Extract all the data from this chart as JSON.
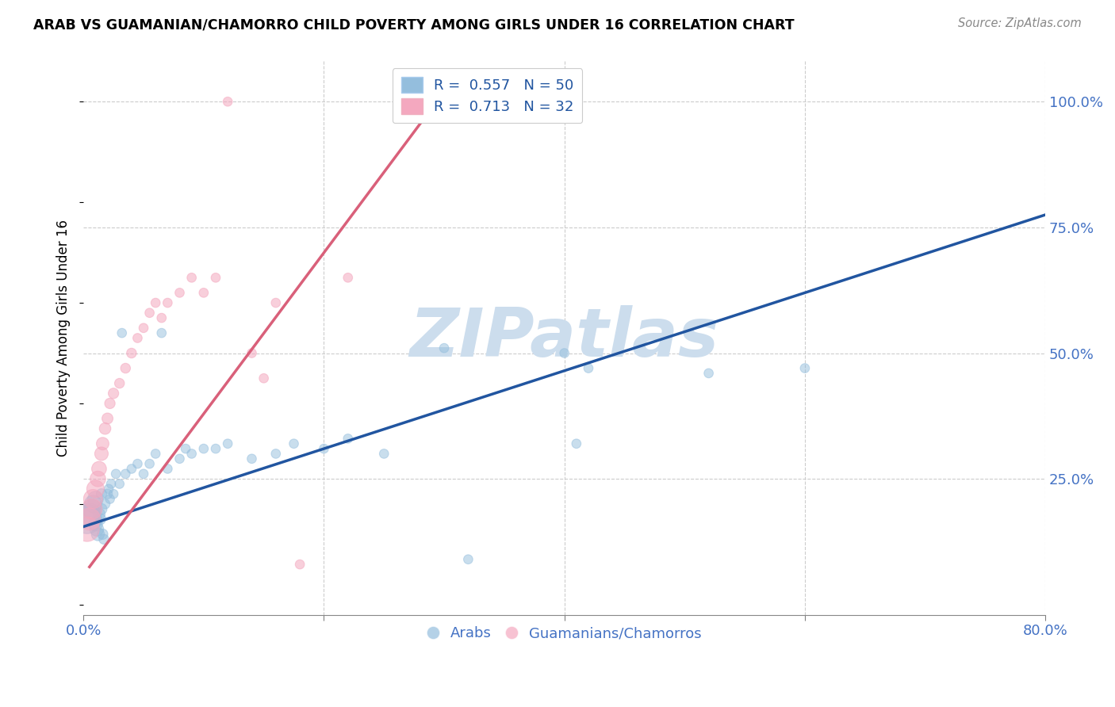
{
  "title": "ARAB VS GUAMANIAN/CHAMORRO CHILD POVERTY AMONG GIRLS UNDER 16 CORRELATION CHART",
  "source": "Source: ZipAtlas.com",
  "tick_color": "#4472c4",
  "ylabel": "Child Poverty Among Girls Under 16",
  "xlim": [
    0.0,
    0.8
  ],
  "ylim": [
    -0.02,
    1.08
  ],
  "xtick_values": [
    0.0,
    0.2,
    0.4,
    0.6,
    0.8
  ],
  "xtick_labels": [
    "0.0%",
    "",
    "",
    "",
    "80.0%"
  ],
  "ytick_labels": [
    "100.0%",
    "75.0%",
    "50.0%",
    "25.0%"
  ],
  "ytick_values": [
    1.0,
    0.75,
    0.5,
    0.25
  ],
  "arab_R": 0.557,
  "arab_N": 50,
  "guam_R": 0.713,
  "guam_N": 32,
  "arab_color": "#94bedd",
  "guam_color": "#f4a8bf",
  "arab_line_color": "#2155a0",
  "guam_line_color": "#d9607a",
  "watermark": "ZIPatlas",
  "watermark_color": "#ccdded",
  "arab_line_x0": 0.0,
  "arab_line_y0": 0.155,
  "arab_line_x1": 0.8,
  "arab_line_y1": 0.775,
  "guam_line_x0": 0.005,
  "guam_line_y0": 0.075,
  "guam_line_x1": 0.3,
  "guam_line_y1": 1.02,
  "arab_scatter_x": [
    0.003,
    0.005,
    0.007,
    0.008,
    0.01,
    0.01,
    0.011,
    0.012,
    0.013,
    0.014,
    0.015,
    0.015,
    0.016,
    0.017,
    0.018,
    0.02,
    0.021,
    0.022,
    0.023,
    0.025,
    0.027,
    0.03,
    0.032,
    0.035,
    0.04,
    0.045,
    0.05,
    0.055,
    0.06,
    0.065,
    0.07,
    0.08,
    0.085,
    0.09,
    0.1,
    0.11,
    0.12,
    0.14,
    0.16,
    0.175,
    0.2,
    0.22,
    0.25,
    0.3,
    0.4,
    0.41,
    0.42,
    0.52,
    0.6,
    0.32
  ],
  "arab_scatter_y": [
    0.17,
    0.18,
    0.19,
    0.2,
    0.21,
    0.16,
    0.15,
    0.14,
    0.18,
    0.17,
    0.19,
    0.22,
    0.14,
    0.13,
    0.2,
    0.22,
    0.23,
    0.21,
    0.24,
    0.22,
    0.26,
    0.24,
    0.54,
    0.26,
    0.27,
    0.28,
    0.26,
    0.28,
    0.3,
    0.54,
    0.27,
    0.29,
    0.31,
    0.3,
    0.31,
    0.31,
    0.32,
    0.29,
    0.3,
    0.32,
    0.31,
    0.33,
    0.3,
    0.51,
    0.5,
    0.32,
    0.47,
    0.46,
    0.47,
    0.09
  ],
  "arab_scatter_size": [
    700,
    400,
    300,
    250,
    200,
    160,
    160,
    140,
    120,
    100,
    100,
    90,
    90,
    80,
    80,
    80,
    70,
    70,
    70,
    70,
    70,
    70,
    70,
    70,
    70,
    70,
    70,
    70,
    70,
    70,
    70,
    70,
    70,
    70,
    70,
    70,
    70,
    70,
    70,
    70,
    70,
    70,
    70,
    70,
    70,
    70,
    70,
    70,
    70,
    70
  ],
  "guam_scatter_x": [
    0.003,
    0.005,
    0.007,
    0.008,
    0.01,
    0.012,
    0.013,
    0.015,
    0.016,
    0.018,
    0.02,
    0.022,
    0.025,
    0.03,
    0.035,
    0.04,
    0.045,
    0.05,
    0.055,
    0.06,
    0.065,
    0.07,
    0.08,
    0.09,
    0.1,
    0.11,
    0.12,
    0.14,
    0.15,
    0.16,
    0.18,
    0.22
  ],
  "guam_scatter_y": [
    0.15,
    0.17,
    0.19,
    0.21,
    0.23,
    0.25,
    0.27,
    0.3,
    0.32,
    0.35,
    0.37,
    0.4,
    0.42,
    0.44,
    0.47,
    0.5,
    0.53,
    0.55,
    0.58,
    0.6,
    0.57,
    0.6,
    0.62,
    0.65,
    0.62,
    0.65,
    1.0,
    0.5,
    0.45,
    0.6,
    0.08,
    0.65
  ],
  "guam_scatter_size": [
    500,
    400,
    350,
    300,
    250,
    200,
    180,
    150,
    130,
    110,
    100,
    90,
    90,
    80,
    80,
    80,
    70,
    70,
    70,
    70,
    70,
    70,
    70,
    70,
    70,
    70,
    70,
    70,
    70,
    70,
    70,
    70
  ]
}
